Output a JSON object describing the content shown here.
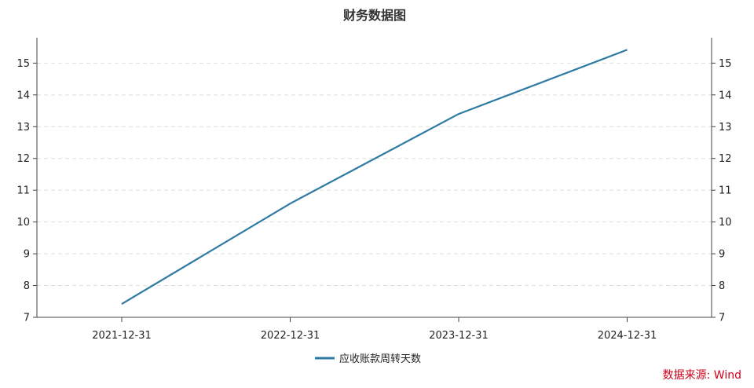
{
  "chart_data": {
    "type": "line",
    "title": "财务数据图",
    "xlabel": "",
    "ylabel": "",
    "categories": [
      "2021-12-31",
      "2022-12-31",
      "2023-12-31",
      "2024-12-31"
    ],
    "series": [
      {
        "name": "应收账款周转天数",
        "values": [
          7.42,
          10.58,
          13.4,
          15.42
        ],
        "color": "#2e7aa3"
      }
    ],
    "ylim": [
      7,
      15.8
    ],
    "yticks": [
      7,
      8,
      9,
      10,
      11,
      12,
      13,
      14,
      15
    ],
    "y_axis_right": true,
    "grid": "horizontal-dashed",
    "legend": "bottom-center"
  },
  "source_label": "数据来源: Wind"
}
